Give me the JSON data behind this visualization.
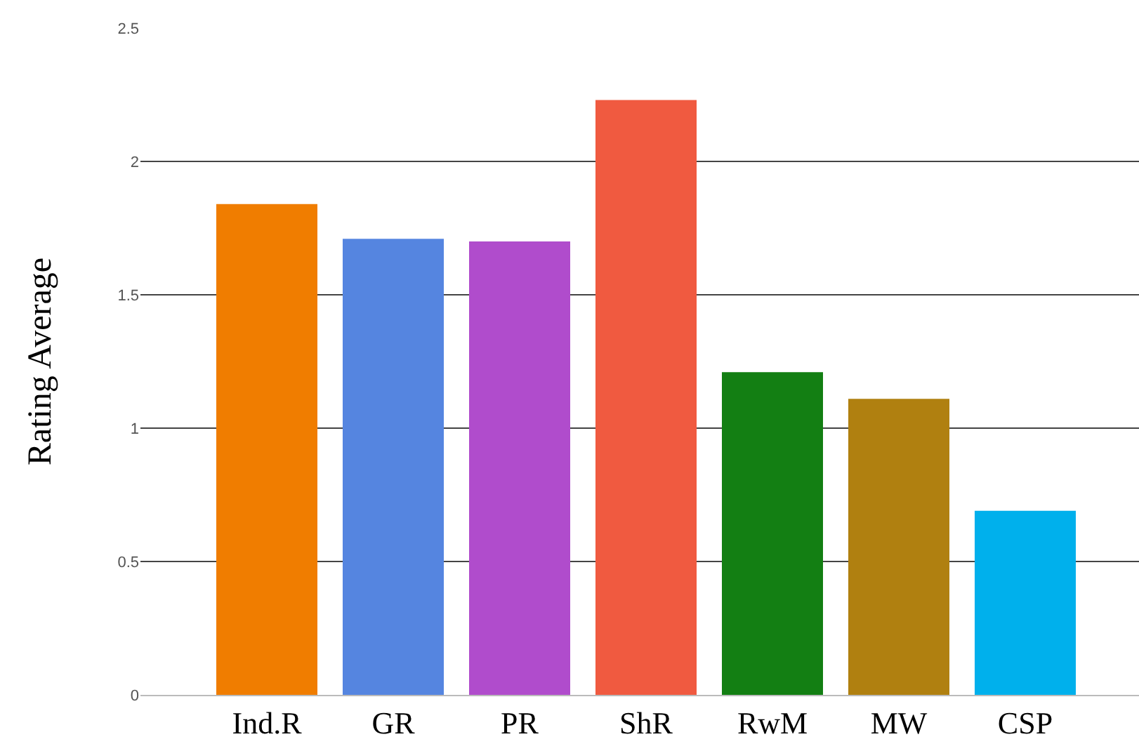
{
  "chart_data": {
    "type": "bar",
    "ylabel": "Rating Average",
    "categories": [
      "Ind.R",
      "GR",
      "PR",
      "ShR",
      "RwM",
      "MW",
      "CSP"
    ],
    "values": [
      1.84,
      1.71,
      1.7,
      2.23,
      1.21,
      1.11,
      0.69
    ],
    "colors": [
      "#f07d00",
      "#5585e0",
      "#b04ccc",
      "#f05a40",
      "#137f13",
      "#b08010",
      "#00b0ec"
    ],
    "ylim": [
      0,
      2.5
    ],
    "yticks": [
      0,
      0.5,
      1,
      1.5,
      2,
      2.5
    ],
    "grid": "y",
    "legend": false
  }
}
